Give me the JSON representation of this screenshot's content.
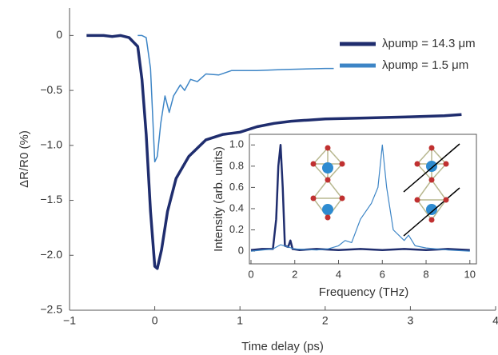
{
  "chart_data": [
    {
      "type": "line",
      "xlabel": "Time delay (ps)",
      "ylabel": "ΔR/R0 (%)",
      "xlim": [
        -1,
        4
      ],
      "ylim": [
        -2.5,
        0.25
      ],
      "xticks": [
        {
          "value": -1,
          "label": "−1"
        },
        0,
        1,
        2,
        3,
        4
      ],
      "yticks": [
        0,
        {
          "value": -0.5,
          "label": "−0.5"
        },
        {
          "value": -1.0,
          "label": "−1.0"
        },
        {
          "value": -1.5,
          "label": "−1.5"
        },
        {
          "value": -2.0,
          "label": "−2.0"
        },
        {
          "value": -2.5,
          "label": "−2.5"
        }
      ],
      "legend": "upper right",
      "series": [
        {
          "name": "λpump = 14.3 μm",
          "color": "#1f2d6e",
          "width": 3.5,
          "x": [
            -0.8,
            -0.6,
            -0.5,
            -0.4,
            -0.3,
            -0.2,
            -0.15,
            -0.1,
            -0.05,
            0,
            0.03,
            0.08,
            0.15,
            0.25,
            0.4,
            0.6,
            0.8,
            1.0,
            1.2,
            1.4,
            1.6,
            1.8,
            2.0,
            2.5,
            3.0,
            3.4,
            3.6
          ],
          "values": [
            0,
            0,
            -0.01,
            0,
            -0.02,
            -0.1,
            -0.4,
            -0.9,
            -1.6,
            -2.1,
            -2.12,
            -1.95,
            -1.6,
            -1.3,
            -1.1,
            -0.95,
            -0.9,
            -0.88,
            -0.83,
            -0.8,
            -0.78,
            -0.77,
            -0.76,
            -0.75,
            -0.74,
            -0.73,
            -0.72
          ]
        },
        {
          "name": "λpump = 1.5 μm",
          "color": "#3d85c6",
          "width": 1.5,
          "x": [
            -0.2,
            -0.15,
            -0.1,
            -0.05,
            0,
            0.03,
            0.07,
            0.12,
            0.17,
            0.22,
            0.3,
            0.35,
            0.42,
            0.5,
            0.6,
            0.75,
            0.9,
            1.2,
            1.5,
            2.0,
            2.1
          ],
          "values": [
            0,
            0,
            -0.02,
            -0.3,
            -1.15,
            -1.1,
            -0.8,
            -0.55,
            -0.7,
            -0.55,
            -0.45,
            -0.5,
            -0.4,
            -0.42,
            -0.35,
            -0.36,
            -0.32,
            -0.32,
            -0.31,
            -0.3,
            -0.3
          ]
        }
      ]
    },
    {
      "type": "line",
      "xlabel": "Frequency (THz)",
      "ylabel": "Intensity (arb. units)",
      "xlim": [
        0,
        10.3
      ],
      "ylim": [
        -0.12,
        1.1
      ],
      "xticks": [
        0,
        2,
        4,
        6,
        8,
        10
      ],
      "yticks": [
        0,
        0.2,
        0.4,
        0.6,
        0.8,
        {
          "value": 1.0,
          "label": "1.0"
        }
      ],
      "series": [
        {
          "color": "#1f2d6e",
          "width": 2.5,
          "x": [
            0,
            0.5,
            1.0,
            1.15,
            1.25,
            1.35,
            1.45,
            1.55,
            1.7,
            1.8,
            1.9,
            2.2,
            3,
            4,
            5,
            6,
            7,
            8,
            9,
            10
          ],
          "values": [
            0.01,
            0.02,
            0.02,
            0.3,
            0.8,
            1.0,
            0.6,
            0.05,
            0.04,
            0.1,
            0.02,
            0.01,
            0.02,
            0.01,
            0.02,
            0.01,
            0.02,
            0.01,
            0.02,
            0.01
          ]
        },
        {
          "color": "#3d85c6",
          "width": 1.2,
          "x": [
            0,
            1,
            1.35,
            2,
            3,
            3.5,
            4,
            4.3,
            4.6,
            5.0,
            5.5,
            5.8,
            6.0,
            6.2,
            6.5,
            7.0,
            7.2,
            7.5,
            8,
            9,
            10
          ],
          "values": [
            0,
            0.02,
            0.06,
            0.02,
            0.01,
            0.02,
            0.05,
            0.1,
            0.08,
            0.3,
            0.45,
            0.6,
            1.0,
            0.6,
            0.2,
            0.1,
            0.15,
            0.05,
            0.03,
            0.01,
            0
          ]
        }
      ]
    }
  ]
}
